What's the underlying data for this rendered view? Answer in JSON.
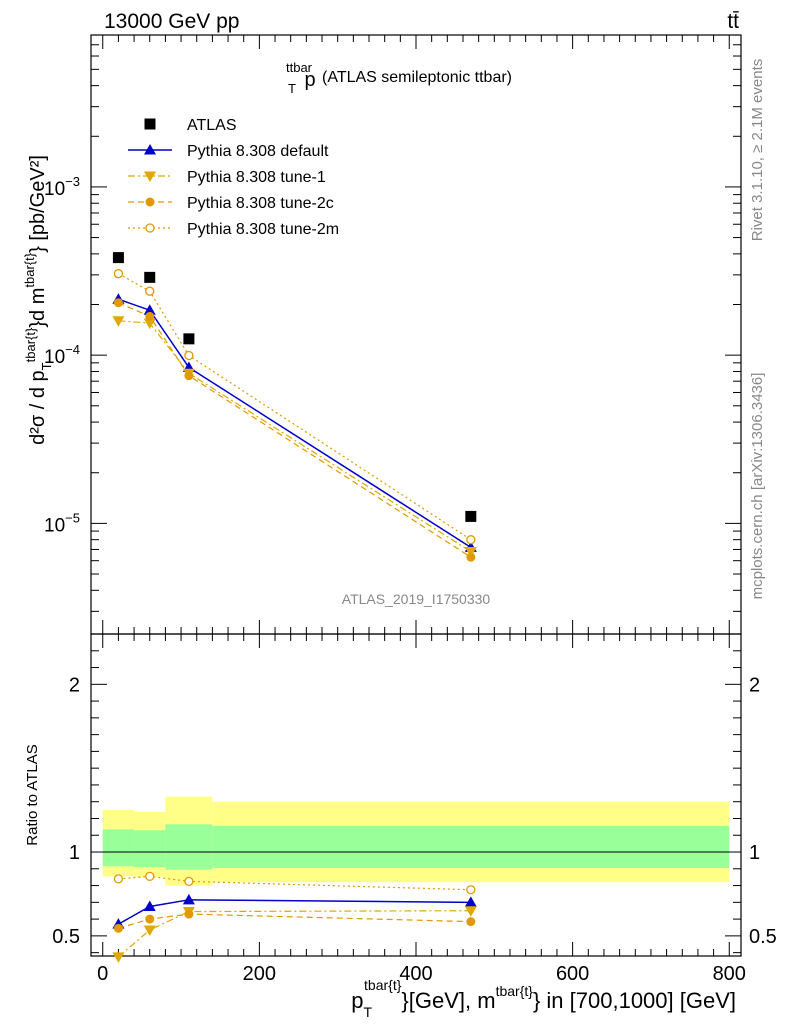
{
  "header": {
    "energy_label": "13000 GeV pp",
    "process_label": "tt̄"
  },
  "side": {
    "rivet_label": "Rivet 3.1.10, ≥ 2.1M events",
    "mcplots_label": "mcplots.cern.ch [arXiv:1306.3436]"
  },
  "chart_data": [
    {
      "type": "line",
      "panel": "main",
      "title_main": "p",
      "title_sup": "ttbar",
      "title_sub": "T",
      "title_rest": " (ATLAS semileptonic ttbar)",
      "ylabel": "d²σ / d p_T^{tbar{t}}d m^{tbar{t}} [pb/GeV²]",
      "yscale": "log",
      "ylim": [
        2.2e-06,
        0.008
      ],
      "xlim": [
        -15,
        815
      ],
      "yticks": [
        {
          "value": 0.001,
          "base": "10",
          "exp": "−3"
        },
        {
          "value": 0.0001,
          "base": "10",
          "exp": "−4"
        },
        {
          "value": 1e-05,
          "base": "10",
          "exp": "−5"
        }
      ],
      "watermark": "ATLAS_2019_I1750330",
      "legend_position": "top-left",
      "x": [
        20,
        60,
        110,
        470
      ],
      "series": [
        {
          "name": "ATLAS",
          "style": "data",
          "color": "#000000",
          "values": [
            0.00038,
            0.00029,
            0.000125,
            1.1e-05
          ]
        },
        {
          "name": "Pythia 8.308 default",
          "style": "solid",
          "marker": "triangle-up",
          "color": "#0000cc",
          "values": [
            0.000215,
            0.000185,
            8.45e-05,
            7.2e-06
          ]
        },
        {
          "name": "Pythia 8.308 tune-1",
          "style": "dashdot",
          "marker": "triangle-down",
          "color": "#e0a800",
          "values": [
            0.00016,
            0.000155,
            7.8e-05,
            6.8e-06
          ]
        },
        {
          "name": "Pythia 8.308 tune-2c",
          "style": "dashed",
          "marker": "circle-filled",
          "color": "#e09a00",
          "values": [
            0.000205,
            0.00017,
            7.55e-05,
            6.3e-06
          ]
        },
        {
          "name": "Pythia 8.308 tune-2m",
          "style": "dotted",
          "marker": "circle-open",
          "color": "#e09a00",
          "values": [
            0.000305,
            0.00024,
            9.95e-05,
            8e-06
          ]
        }
      ]
    },
    {
      "type": "line",
      "panel": "ratio",
      "ylabel": "Ratio to ATLAS",
      "ylim": [
        0.38,
        2.3
      ],
      "xlim": [
        -15,
        815
      ],
      "yticks": [
        {
          "value": 0.5,
          "label": "0.5"
        },
        {
          "value": 1,
          "label": "1"
        },
        {
          "value": 2,
          "label": "2"
        }
      ],
      "xticks": [
        {
          "value": 0,
          "label": "0"
        },
        {
          "value": 200,
          "label": "200"
        },
        {
          "value": 400,
          "label": "400"
        },
        {
          "value": 600,
          "label": "600"
        },
        {
          "value": 800,
          "label": "800"
        }
      ],
      "xlabel_parts": {
        "p": "p",
        "sub": "T",
        "sup1": "tbar{t}",
        "mid": "}[GeV], m",
        "sup2": "tbar{t}",
        "end": "} in [700,1000] [GeV]"
      },
      "bands": [
        {
          "x0": 0,
          "x1": 40,
          "yellow": [
            0.855,
            1.25
          ],
          "green": [
            0.915,
            1.135
          ]
        },
        {
          "x0": 40,
          "x1": 80,
          "yellow": [
            0.85,
            1.24
          ],
          "green": [
            0.91,
            1.13
          ]
        },
        {
          "x0": 80,
          "x1": 140,
          "yellow": [
            0.8,
            1.33
          ],
          "green": [
            0.895,
            1.165
          ]
        },
        {
          "x0": 140,
          "x1": 800,
          "yellow": [
            0.82,
            1.3
          ],
          "green": [
            0.905,
            1.155
          ]
        }
      ],
      "x": [
        20,
        60,
        110,
        470
      ],
      "series": [
        {
          "name": "Pythia 8.308 default",
          "style": "solid",
          "marker": "triangle-up",
          "color": "#0000cc",
          "values": [
            0.57,
            0.675,
            0.715,
            0.7
          ]
        },
        {
          "name": "Pythia 8.308 tune-1",
          "style": "dashdot",
          "marker": "triangle-down",
          "color": "#e0a800",
          "values": [
            0.375,
            0.535,
            0.645,
            0.65
          ]
        },
        {
          "name": "Pythia 8.308 tune-2c",
          "style": "dashed",
          "marker": "circle-filled",
          "color": "#e09a00",
          "values": [
            0.545,
            0.6,
            0.63,
            0.585
          ]
        },
        {
          "name": "Pythia 8.308 tune-2m",
          "style": "dotted",
          "marker": "circle-open",
          "color": "#e09a00",
          "values": [
            0.84,
            0.855,
            0.825,
            0.775
          ]
        }
      ]
    }
  ]
}
